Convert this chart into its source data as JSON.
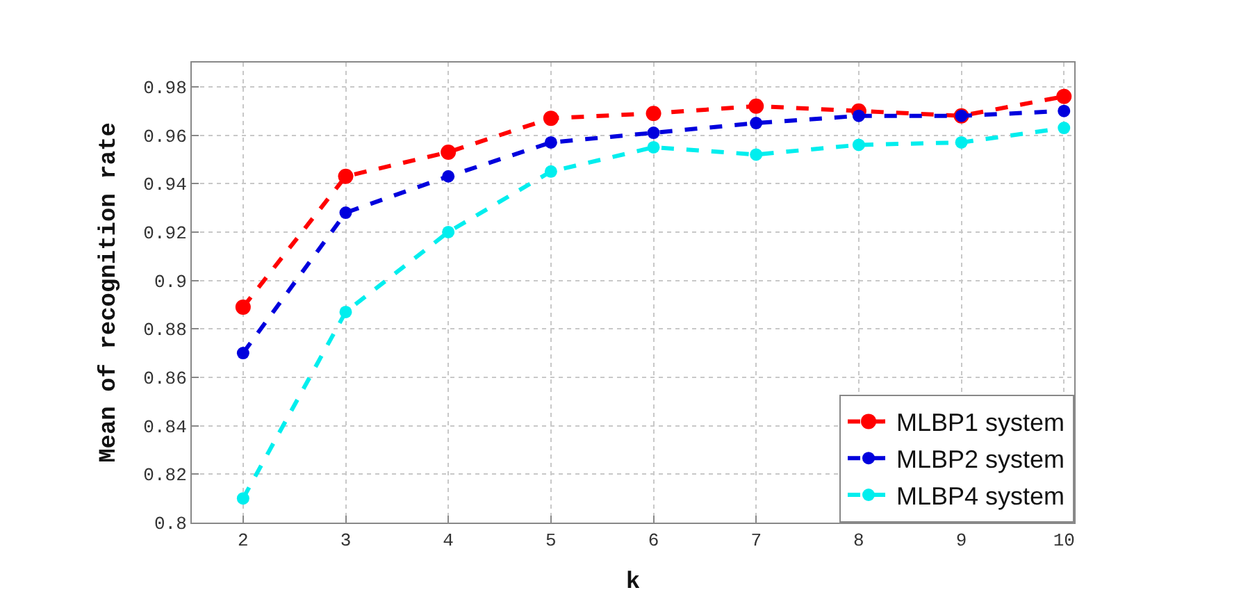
{
  "chart_data": {
    "type": "line",
    "xlabel": "k",
    "ylabel": "Mean of recognition rate",
    "x": [
      2,
      3,
      4,
      5,
      6,
      7,
      8,
      9,
      10
    ],
    "series": [
      {
        "name": "MLBP1 system",
        "color": "#ff0000",
        "values": [
          0.889,
          0.943,
          0.953,
          0.967,
          0.969,
          0.972,
          0.97,
          0.968,
          0.976
        ]
      },
      {
        "name": "MLBP2 system",
        "color": "#0000dd",
        "values": [
          0.87,
          0.928,
          0.943,
          0.957,
          0.961,
          0.965,
          0.968,
          0.968,
          0.97
        ]
      },
      {
        "name": "MLBP4 system",
        "color": "#00eeee",
        "values": [
          0.81,
          0.887,
          0.92,
          0.945,
          0.955,
          0.952,
          0.956,
          0.957,
          0.963
        ]
      }
    ],
    "xlim": [
      1.5,
      10.1
    ],
    "xticks": [
      2,
      3,
      4,
      5,
      6,
      7,
      8,
      9,
      10
    ],
    "ylim": [
      0.8,
      0.99
    ],
    "yticks": [
      {
        "value": 0.8,
        "label": "0.8"
      },
      0.82,
      0.84,
      0.86,
      0.88,
      {
        "value": 0.9,
        "label": "0.9"
      },
      0.92,
      0.94,
      0.96,
      0.98
    ],
    "grid": true,
    "legend": "bottom right",
    "marker": "circle",
    "line_style": "dashed"
  }
}
